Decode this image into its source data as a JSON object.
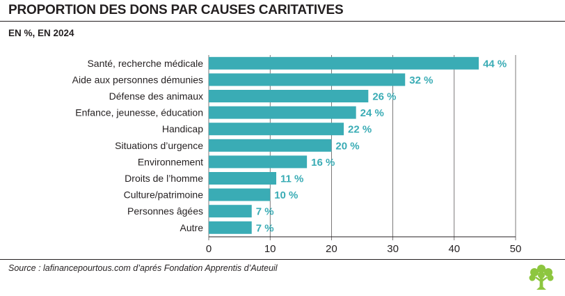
{
  "header": {
    "title": "PROPORTION DES DONS PAR CAUSES CARITATIVES",
    "subtitle": "EN %, EN 2024"
  },
  "footer": {
    "source": "Source : lafinancepourtous.com d’aprés Fondation Apprentis d’Auteuil"
  },
  "logo": {
    "icon": "tree-logo-icon",
    "color": "#8dc63f"
  },
  "colors": {
    "bar": "#3aacb5",
    "label": "#3aacb5",
    "axis": "#231f20",
    "grid": "#231f20"
  },
  "chart_data": {
    "type": "bar",
    "orientation": "horizontal",
    "categories": [
      "Santé, recherche médicale",
      "Aide aux personnes démunies",
      "Défense des animaux",
      "Enfance, jeunesse, éducation",
      "Handicap",
      "Situations d’urgence",
      "Environnement",
      "Droits de l’homme",
      "Culture/patrimoine",
      "Personnes âgées",
      "Autre"
    ],
    "values": [
      44,
      32,
      26,
      24,
      22,
      20,
      16,
      11,
      10,
      7,
      7
    ],
    "value_labels": [
      "44 %",
      "32 %",
      "26 %",
      "24 %",
      "22 %",
      "20 %",
      "16 %",
      "11 %",
      "10 %",
      "7 %",
      "7 %"
    ],
    "xlim": [
      0,
      50
    ],
    "xticks": [
      0,
      10,
      20,
      30,
      40,
      50
    ],
    "xtick_labels": [
      "0",
      "10",
      "20",
      "30",
      "40",
      "50"
    ],
    "grid": true
  }
}
